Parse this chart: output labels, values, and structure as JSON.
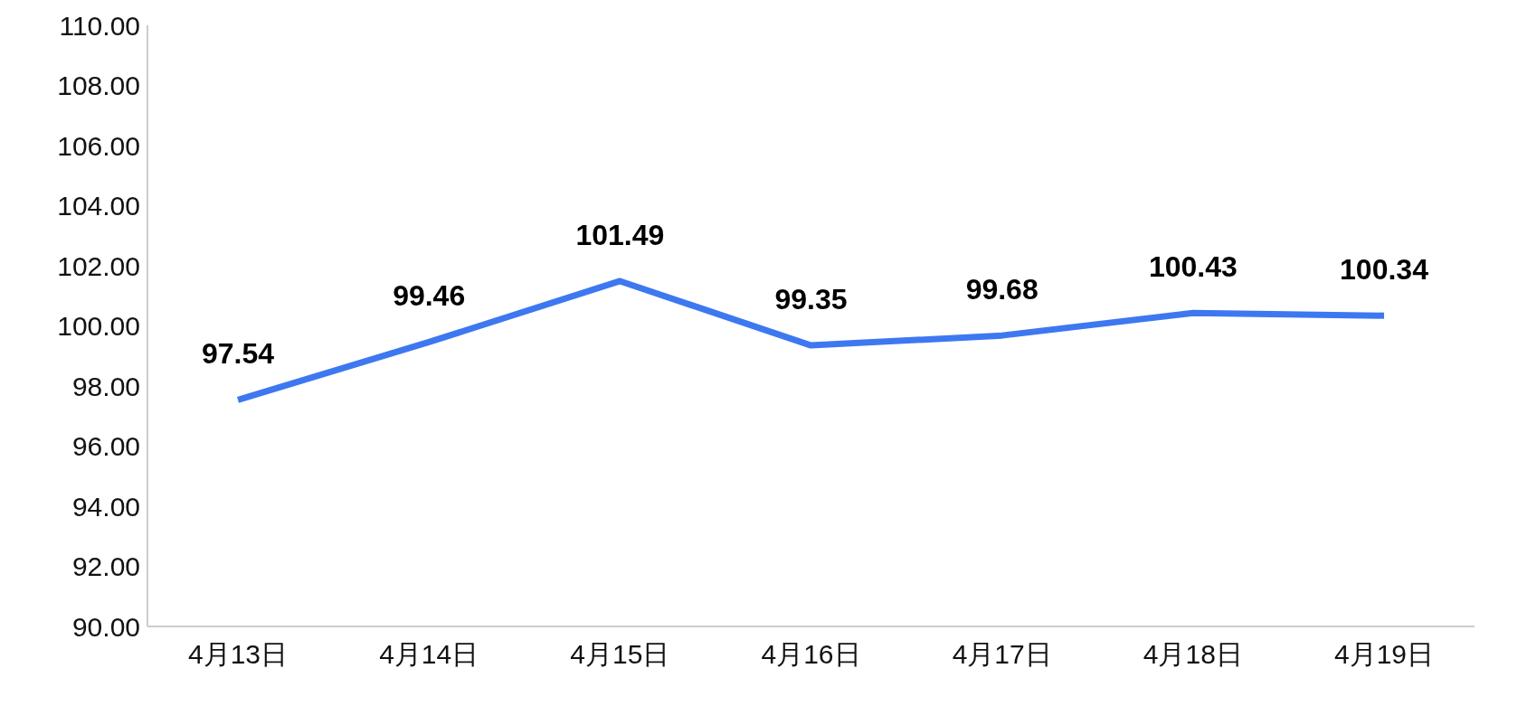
{
  "chart_data": {
    "type": "line",
    "categories": [
      "4月13日",
      "4月14日",
      "4月15日",
      "4月16日",
      "4月17日",
      "4月18日",
      "4月19日"
    ],
    "series": [
      {
        "color": "#3e78f0",
        "values": [
          97.54,
          99.46,
          101.49,
          99.35,
          99.68,
          100.43,
          100.34
        ]
      }
    ],
    "ylim": [
      90,
      110
    ],
    "yticks": [
      {
        "value": 90,
        "label": "90.00"
      },
      {
        "value": 92,
        "label": "92.00"
      },
      {
        "value": 94,
        "label": "94.00"
      },
      {
        "value": 96,
        "label": "96.00"
      },
      {
        "value": 98,
        "label": "98.00"
      },
      {
        "value": 100,
        "label": "100.00"
      },
      {
        "value": 102,
        "label": "102.00"
      },
      {
        "value": 104,
        "label": "104.00"
      },
      {
        "value": 106,
        "label": "106.00"
      },
      {
        "value": 108,
        "label": "108.00"
      },
      {
        "value": 110,
        "label": "110.00"
      }
    ],
    "data_labels": true,
    "grid": false,
    "legend": false
  }
}
